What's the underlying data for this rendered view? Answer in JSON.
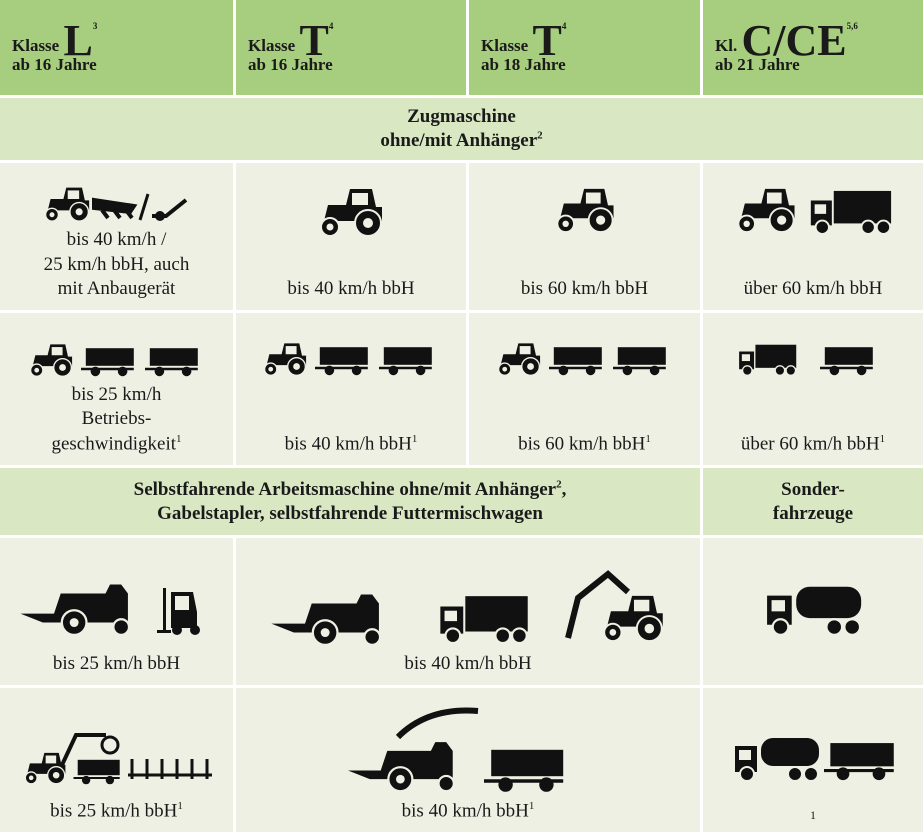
{
  "header": [
    {
      "prefix": "Klasse",
      "class": "L",
      "note": "3",
      "age": "ab 16 Jahre"
    },
    {
      "prefix": "Klasse",
      "class": "T",
      "note": "4",
      "age": "ab 16 Jahre"
    },
    {
      "prefix": "Klasse",
      "class": "T",
      "note": "4",
      "age": "ab 18 Jahre"
    },
    {
      "prefix": "Kl.",
      "class": "C/CE",
      "note": "5,6",
      "age": "ab 21 Jahre"
    }
  ],
  "zug": {
    "title": [
      "Zugmaschine",
      "ohne/mit Anhänger"
    ],
    "note": "2"
  },
  "zug_rows": [
    [
      {
        "lines": [
          "bis 40 km/h /",
          "25 km/h bbH, auch",
          "mit Anbaugerät"
        ]
      },
      {
        "lines": [
          "bis 40 km/h bbH"
        ]
      },
      {
        "lines": [
          "bis 60 km/h bbH"
        ]
      },
      {
        "lines": [
          "über 60 km/h bbH"
        ]
      }
    ],
    [
      {
        "lines": [
          "bis 25 km/h",
          "Betriebs-",
          "geschwindigkeit"
        ],
        "note": "1"
      },
      {
        "lines": [
          "bis 40 km/h bbH"
        ],
        "note": "1"
      },
      {
        "lines": [
          "bis 60 km/h bbH"
        ],
        "note": "1"
      },
      {
        "lines": [
          "über 60 km/h bbH"
        ],
        "note": "1"
      }
    ]
  ],
  "selbst": {
    "line1": "Selbstfahrende Arbeitsmaschine ohne/mit Anhänger",
    "note": "2",
    "line1_end": ",",
    "line2": "Gabelstapler, selbstfahrende Futtermischwagen"
  },
  "sonder": [
    "Sonder-",
    "fahrzeuge"
  ],
  "selbst_rows": [
    [
      {
        "lines": [
          "bis 25 km/h bbH"
        ]
      },
      {
        "lines": [
          "bis 40 km/h bbH"
        ]
      }
    ],
    [
      {
        "lines": [
          "bis 25 km/h bbH"
        ],
        "note": "1"
      },
      {
        "lines": [
          "bis 40 km/h bbH"
        ],
        "note": "1"
      },
      {
        "note": "1"
      }
    ]
  ]
}
